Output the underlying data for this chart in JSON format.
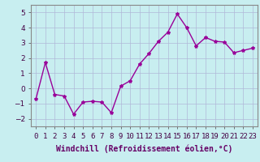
{
  "x": [
    0,
    1,
    2,
    3,
    4,
    5,
    6,
    7,
    8,
    9,
    10,
    11,
    12,
    13,
    14,
    15,
    16,
    17,
    18,
    19,
    20,
    21,
    22,
    23
  ],
  "y": [
    -0.7,
    1.7,
    -0.4,
    -0.5,
    -1.7,
    -0.9,
    -0.85,
    -0.9,
    -1.6,
    0.15,
    0.5,
    1.6,
    2.3,
    3.1,
    3.7,
    4.9,
    4.0,
    2.8,
    3.35,
    3.1,
    3.05,
    2.35,
    2.5,
    2.65
  ],
  "line_color": "#990099",
  "marker": "*",
  "markersize": 3,
  "linewidth": 1,
  "xlim": [
    -0.5,
    23.5
  ],
  "ylim": [
    -2.5,
    5.5
  ],
  "yticks": [
    -2,
    -1,
    0,
    1,
    2,
    3,
    4,
    5
  ],
  "xtick_labels": [
    "0",
    "1",
    "2",
    "3",
    "4",
    "5",
    "6",
    "7",
    "8",
    "9",
    "10",
    "11",
    "12",
    "13",
    "14",
    "15",
    "16",
    "17",
    "18",
    "19",
    "20",
    "21",
    "22",
    "23"
  ],
  "xlabel": "Windchill (Refroidissement éolien,°C)",
  "background_color": "#c8eef0",
  "grid_color": "#b0b8d8",
  "xlabel_fontsize": 7,
  "tick_fontsize": 6.5
}
